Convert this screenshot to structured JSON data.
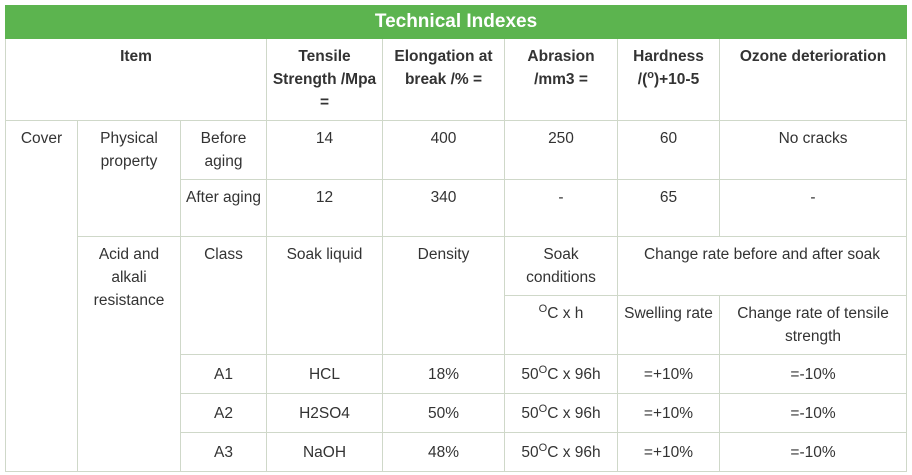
{
  "title": "Technical Indexes",
  "headers": {
    "item": "Item",
    "tensile": "Tensile Strength /Mpa =",
    "elongation": "Elongation at break /% =",
    "abrasion": "Abrasion /mm3 =",
    "hardness_pre": "Hardness /(",
    "hardness_sup": "o",
    "hardness_post": ")+10-5",
    "ozone": "Ozone deterioration"
  },
  "cover": "Cover",
  "physical": {
    "label": "Physical property",
    "before": {
      "label": "Before aging",
      "tensile": "14",
      "elongation": "400",
      "abrasion": "250",
      "hardness": "60",
      "ozone": "No cracks"
    },
    "after": {
      "label": "After aging",
      "tensile": "12",
      "elongation": "340",
      "abrasion": "-",
      "hardness": "65",
      "ozone": "-"
    }
  },
  "acid": {
    "label": "Acid and alkali resistance",
    "class": "Class",
    "soak_liquid": "Soak liquid",
    "density": "Density",
    "soak_conditions": "Soak conditions",
    "change_rate": "Change rate before and after soak",
    "unit_sup": "O",
    "unit_text": "C x h",
    "swelling": "Swelling rate",
    "change_tensile": "Change rate of tensile strength",
    "rows": [
      {
        "cls": "A1",
        "liquid": "HCL",
        "density": "18%",
        "temp": "50",
        "cond": "C x 96h",
        "swelling": "=+10%",
        "tensile": "=-10%"
      },
      {
        "cls": "A2",
        "liquid": "H2SO4",
        "density": "50%",
        "temp": "50",
        "cond": "C x 96h",
        "swelling": "=+10%",
        "tensile": "=-10%"
      },
      {
        "cls": "A3",
        "liquid": "NaOH",
        "density": "48%",
        "temp": "50",
        "cond": "C x 96h",
        "swelling": "=+10%",
        "tensile": "=-10%"
      }
    ]
  }
}
